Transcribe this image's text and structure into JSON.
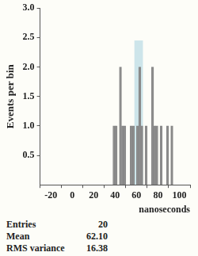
{
  "chart_data": {
    "type": "histogram",
    "bins": [
      36,
      38,
      40,
      42,
      44,
      46,
      48,
      50,
      52,
      54,
      56,
      58,
      60,
      62,
      64,
      66,
      68,
      70,
      72,
      74,
      76,
      78,
      80,
      82,
      84,
      86,
      88,
      90,
      92,
      94
    ],
    "values": [
      0,
      1,
      1,
      0,
      2,
      1,
      1,
      0,
      0,
      1,
      1,
      0,
      1,
      2,
      1,
      0,
      1,
      0,
      0,
      2,
      1,
      1,
      0,
      1,
      0,
      0,
      1,
      0,
      1
    ],
    "color": "#888888",
    "band": {
      "x": [
        58,
        66
      ],
      "y": [
        0,
        2.45
      ],
      "color": "#cde5ea"
    },
    "x_label": "nanoseconds",
    "y_label": "Events per bin",
    "xlim": [
      -30,
      110
    ],
    "xticks": [
      -20,
      0,
      20,
      40,
      60,
      80,
      100
    ],
    "ylim": [
      0,
      3
    ],
    "yticks": [
      0.5,
      {
        "value": 1,
        "label": "1.0"
      },
      1.5,
      {
        "value": 2,
        "label": "2.0"
      },
      2.5,
      {
        "value": 3,
        "label": "3.0"
      }
    ],
    "grid": false,
    "stats": [
      {
        "label": "Entries",
        "value": 20
      },
      {
        "label": "Mean",
        "value": 62.1,
        "value_label": "62.10"
      },
      {
        "label": "RMS variance",
        "value": 16.38
      }
    ]
  }
}
